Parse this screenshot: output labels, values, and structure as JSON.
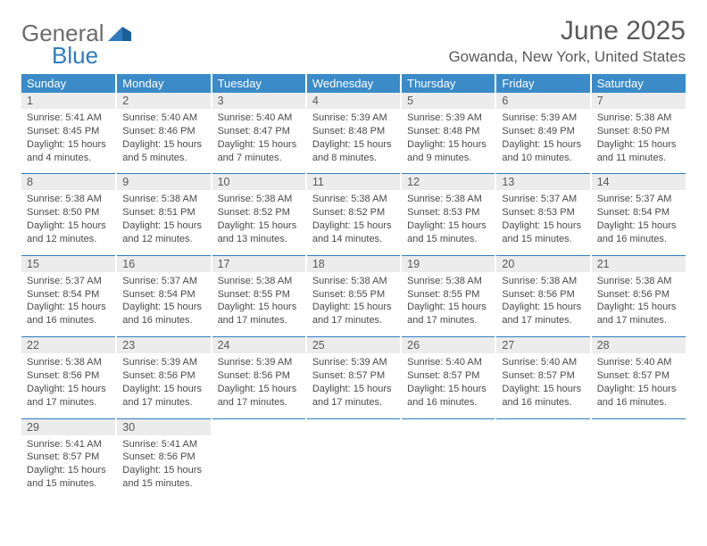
{
  "logo": {
    "general": "General",
    "blue": "Blue",
    "tri_color": "#2e7cc0"
  },
  "title": "June 2025",
  "location": "Gowanda, New York, United States",
  "colors": {
    "header_bg": "#3b8bc9",
    "header_fg": "#ffffff",
    "daynum_bg": "#ececec",
    "daynum_fg": "#5a5a5a",
    "sep_line": "#2e7cc0",
    "text": "#4a4a4a",
    "title": "#5a5a5a"
  },
  "day_names": [
    "Sunday",
    "Monday",
    "Tuesday",
    "Wednesday",
    "Thursday",
    "Friday",
    "Saturday"
  ],
  "label_prefix": {
    "sunrise": "Sunrise: ",
    "sunset": "Sunset: ",
    "daylight": "Daylight: "
  },
  "weeks": [
    [
      {
        "n": "1",
        "sunrise": "5:41 AM",
        "sunset": "8:45 PM",
        "daylight": "15 hours and 4 minutes."
      },
      {
        "n": "2",
        "sunrise": "5:40 AM",
        "sunset": "8:46 PM",
        "daylight": "15 hours and 5 minutes."
      },
      {
        "n": "3",
        "sunrise": "5:40 AM",
        "sunset": "8:47 PM",
        "daylight": "15 hours and 7 minutes."
      },
      {
        "n": "4",
        "sunrise": "5:39 AM",
        "sunset": "8:48 PM",
        "daylight": "15 hours and 8 minutes."
      },
      {
        "n": "5",
        "sunrise": "5:39 AM",
        "sunset": "8:48 PM",
        "daylight": "15 hours and 9 minutes."
      },
      {
        "n": "6",
        "sunrise": "5:39 AM",
        "sunset": "8:49 PM",
        "daylight": "15 hours and 10 minutes."
      },
      {
        "n": "7",
        "sunrise": "5:38 AM",
        "sunset": "8:50 PM",
        "daylight": "15 hours and 11 minutes."
      }
    ],
    [
      {
        "n": "8",
        "sunrise": "5:38 AM",
        "sunset": "8:50 PM",
        "daylight": "15 hours and 12 minutes."
      },
      {
        "n": "9",
        "sunrise": "5:38 AM",
        "sunset": "8:51 PM",
        "daylight": "15 hours and 12 minutes."
      },
      {
        "n": "10",
        "sunrise": "5:38 AM",
        "sunset": "8:52 PM",
        "daylight": "15 hours and 13 minutes."
      },
      {
        "n": "11",
        "sunrise": "5:38 AM",
        "sunset": "8:52 PM",
        "daylight": "15 hours and 14 minutes."
      },
      {
        "n": "12",
        "sunrise": "5:38 AM",
        "sunset": "8:53 PM",
        "daylight": "15 hours and 15 minutes."
      },
      {
        "n": "13",
        "sunrise": "5:37 AM",
        "sunset": "8:53 PM",
        "daylight": "15 hours and 15 minutes."
      },
      {
        "n": "14",
        "sunrise": "5:37 AM",
        "sunset": "8:54 PM",
        "daylight": "15 hours and 16 minutes."
      }
    ],
    [
      {
        "n": "15",
        "sunrise": "5:37 AM",
        "sunset": "8:54 PM",
        "daylight": "15 hours and 16 minutes."
      },
      {
        "n": "16",
        "sunrise": "5:37 AM",
        "sunset": "8:54 PM",
        "daylight": "15 hours and 16 minutes."
      },
      {
        "n": "17",
        "sunrise": "5:38 AM",
        "sunset": "8:55 PM",
        "daylight": "15 hours and 17 minutes."
      },
      {
        "n": "18",
        "sunrise": "5:38 AM",
        "sunset": "8:55 PM",
        "daylight": "15 hours and 17 minutes."
      },
      {
        "n": "19",
        "sunrise": "5:38 AM",
        "sunset": "8:55 PM",
        "daylight": "15 hours and 17 minutes."
      },
      {
        "n": "20",
        "sunrise": "5:38 AM",
        "sunset": "8:56 PM",
        "daylight": "15 hours and 17 minutes."
      },
      {
        "n": "21",
        "sunrise": "5:38 AM",
        "sunset": "8:56 PM",
        "daylight": "15 hours and 17 minutes."
      }
    ],
    [
      {
        "n": "22",
        "sunrise": "5:38 AM",
        "sunset": "8:56 PM",
        "daylight": "15 hours and 17 minutes."
      },
      {
        "n": "23",
        "sunrise": "5:39 AM",
        "sunset": "8:56 PM",
        "daylight": "15 hours and 17 minutes."
      },
      {
        "n": "24",
        "sunrise": "5:39 AM",
        "sunset": "8:56 PM",
        "daylight": "15 hours and 17 minutes."
      },
      {
        "n": "25",
        "sunrise": "5:39 AM",
        "sunset": "8:57 PM",
        "daylight": "15 hours and 17 minutes."
      },
      {
        "n": "26",
        "sunrise": "5:40 AM",
        "sunset": "8:57 PM",
        "daylight": "15 hours and 16 minutes."
      },
      {
        "n": "27",
        "sunrise": "5:40 AM",
        "sunset": "8:57 PM",
        "daylight": "15 hours and 16 minutes."
      },
      {
        "n": "28",
        "sunrise": "5:40 AM",
        "sunset": "8:57 PM",
        "daylight": "15 hours and 16 minutes."
      }
    ],
    [
      {
        "n": "29",
        "sunrise": "5:41 AM",
        "sunset": "8:57 PM",
        "daylight": "15 hours and 15 minutes."
      },
      {
        "n": "30",
        "sunrise": "5:41 AM",
        "sunset": "8:56 PM",
        "daylight": "15 hours and 15 minutes."
      },
      null,
      null,
      null,
      null,
      null
    ]
  ]
}
